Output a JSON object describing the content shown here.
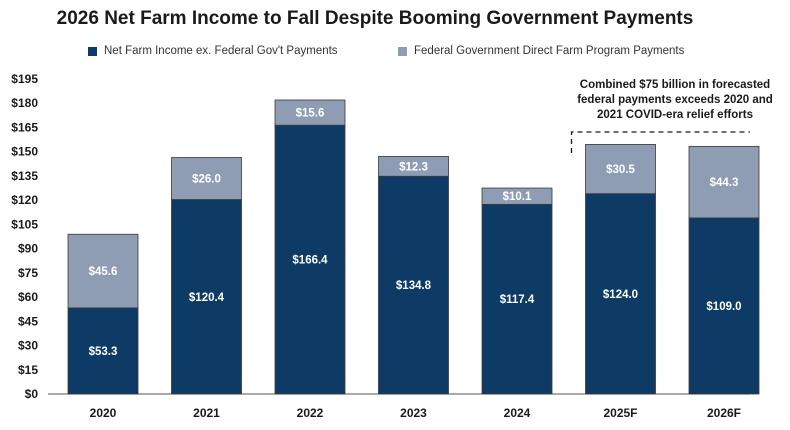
{
  "title": "2026 Net Farm Income to Fall Despite Booming Government Payments",
  "colors": {
    "net_income": "#0e3a66",
    "gov_payments": "#8e9db4",
    "axis": "#333333"
  },
  "annotation": {
    "lines": [
      "Combined $75 billion in forecasted",
      "federal payments exceeds 2020 and",
      "2021 COVID-era relief efforts"
    ]
  },
  "chart_data": {
    "type": "bar",
    "stacked": true,
    "title": "2026 Net Farm Income to Fall Despite Booming Government Payments",
    "categories": [
      "2020",
      "2021",
      "2022",
      "2023",
      "2024",
      "2025F",
      "2026F"
    ],
    "series": [
      {
        "name": "Net Farm Income ex. Federal Gov't Payments",
        "values": [
          53.3,
          120.4,
          166.4,
          134.8,
          117.4,
          124.0,
          109.0
        ],
        "labels": [
          "$53.3",
          "$120.4",
          "$166.4",
          "$134.8",
          "$117.4",
          "$124.0",
          "$109.0"
        ]
      },
      {
        "name": "Federal Government Direct Farm Program Payments",
        "values": [
          45.6,
          26.0,
          15.6,
          12.3,
          10.1,
          30.5,
          44.3
        ],
        "labels": [
          "$45.6",
          "$26.0",
          "$15.6",
          "$12.3",
          "$10.1",
          "$30.5",
          "$44.3"
        ]
      }
    ],
    "ylim": [
      0,
      195
    ],
    "yticks": [
      0,
      15,
      30,
      45,
      60,
      75,
      90,
      105,
      120,
      135,
      150,
      165,
      180,
      195
    ],
    "ytick_labels": [
      "$0",
      "$15",
      "$30",
      "$45",
      "$60",
      "$75",
      "$90",
      "$105",
      "$120",
      "$135",
      "$150",
      "$165",
      "$180",
      "$195"
    ],
    "xlabel": "",
    "ylabel": "",
    "grid": false,
    "legend": "top-center"
  }
}
